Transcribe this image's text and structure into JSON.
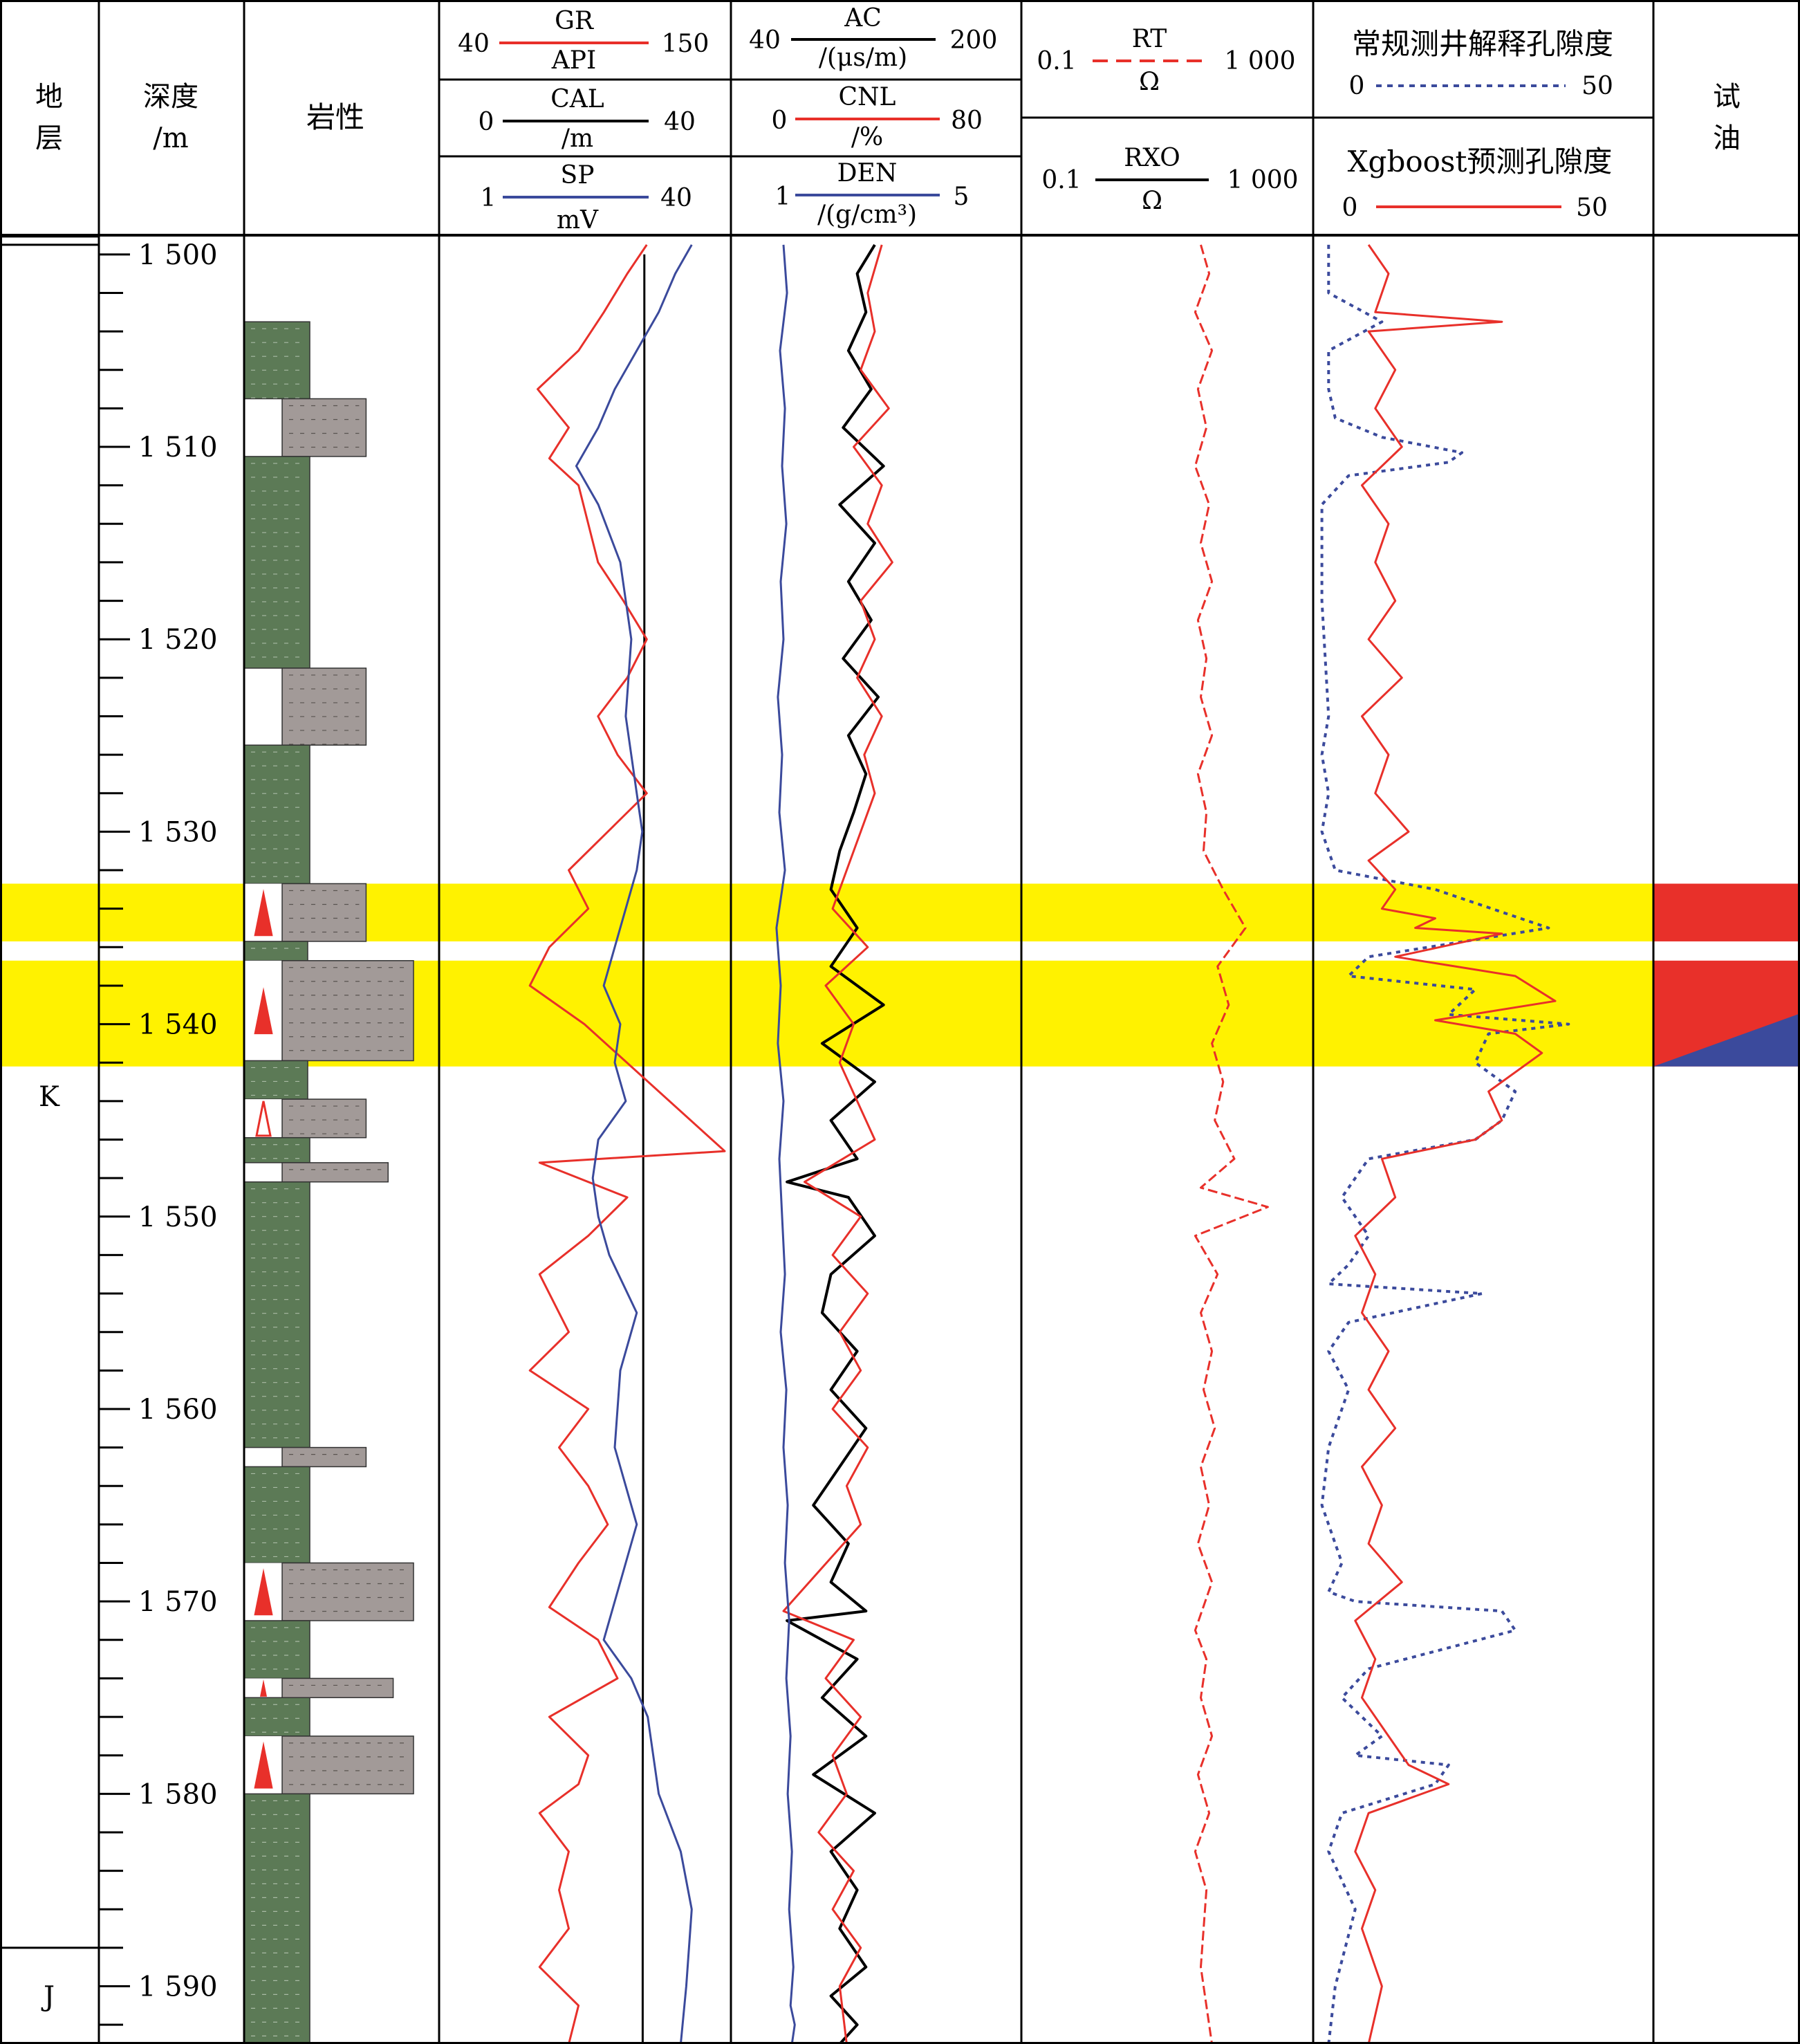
{
  "headers": {
    "stratum": [
      "地",
      "层"
    ],
    "depth": [
      "深度",
      "/m"
    ],
    "lithology": "岩性",
    "test": [
      "试",
      "油"
    ],
    "porosity_conv_title": "常规测井解释孔隙度",
    "porosity_xgb_title": "Xgboost预测孔隙度"
  },
  "tracks": [
    {
      "name": "GR",
      "unit": "API",
      "min": "40",
      "max": "150",
      "color": "#e8302a"
    },
    {
      "name": "CAL",
      "unit": "/m",
      "min": "0",
      "max": "40",
      "color": "#000000"
    },
    {
      "name": "SP",
      "unit": "mV",
      "min": "1",
      "max": "40",
      "color": "#3b4a9c"
    },
    {
      "name": "AC",
      "unit": "/(μs/m)",
      "min": "40",
      "max": "200",
      "color": "#000000"
    },
    {
      "name": "CNL",
      "unit": "/%",
      "min": "0",
      "max": "80",
      "color": "#e8302a"
    },
    {
      "name": "DEN",
      "unit": "/(g/cm³)",
      "min": "1",
      "max": "5",
      "color": "#3b4a9c"
    },
    {
      "name": "RT",
      "unit": "Ω",
      "min": "0.1",
      "max": "1 000",
      "color": "#e8302a"
    },
    {
      "name": "RXO",
      "unit": "Ω",
      "min": "0.1",
      "max": "1 000",
      "color": "#000000"
    },
    {
      "name": "常规测井解释孔隙度",
      "unit": "",
      "min": "0",
      "max": "50",
      "color": "#3b4a9c"
    },
    {
      "name": "Xgboost预测孔隙度",
      "unit": "",
      "min": "0",
      "max": "50",
      "color": "#e8302a"
    }
  ],
  "colors": {
    "shale": "#5c7a56",
    "sand": "#a29a98",
    "highlight": "#fff200",
    "oil": "#e8302a",
    "water": "#3b4a9c",
    "red_curve": "#e8302a",
    "blue_curve": "#3b4a9c",
    "black_curve": "#000000"
  },
  "chart_data": {
    "type": "well_log",
    "depth_range": [
      1499,
      1593
    ],
    "depth_ticks": [
      1500,
      1510,
      1520,
      1530,
      1540,
      1550,
      1560,
      1570,
      1580,
      1590
    ],
    "depth_tick_labels": [
      "1 500",
      "1 510",
      "1 520",
      "1 530",
      "1 540",
      "1 550",
      "1 560",
      "1 570",
      "1 580",
      "1 590"
    ],
    "strata": [
      {
        "label": "K",
        "top": 1499.5,
        "bottom": 1588.0
      },
      {
        "label": "J",
        "top": 1588.0,
        "bottom": 1593.0
      }
    ],
    "highlight_zones": [
      [
        1532.7,
        1535.7
      ],
      [
        1536.7,
        1542.2
      ]
    ],
    "oil_test": [
      {
        "top": 1532.7,
        "bottom": 1535.7,
        "result": "oil"
      },
      {
        "top": 1536.7,
        "bottom": 1542.2,
        "result": "oil-water"
      }
    ],
    "lithology": [
      {
        "top": 1503.5,
        "bottom": 1507.5,
        "type": "shale"
      },
      {
        "top": 1507.5,
        "bottom": 1510.5,
        "type": "silty_sand",
        "extent": 0.72
      },
      {
        "top": 1510.5,
        "bottom": 1521.5,
        "type": "shale"
      },
      {
        "top": 1521.5,
        "bottom": 1525.5,
        "type": "silty_sand",
        "extent": 0.72
      },
      {
        "top": 1525.5,
        "bottom": 1532.7,
        "type": "shale"
      },
      {
        "top": 1532.7,
        "bottom": 1535.7,
        "type": "silty_sand",
        "extent": 0.72,
        "oil_marker": "filled"
      },
      {
        "top": 1535.7,
        "bottom": 1536.7,
        "type": "shale",
        "extent": 0.6
      },
      {
        "top": 1536.7,
        "bottom": 1541.9,
        "type": "coarse_sand",
        "extent": 1.0,
        "oil_marker": "filled"
      },
      {
        "top": 1541.9,
        "bottom": 1543.9,
        "type": "shale",
        "extent": 0.6
      },
      {
        "top": 1543.9,
        "bottom": 1545.9,
        "type": "silty_sand",
        "extent": 0.72,
        "oil_marker": "hollow"
      },
      {
        "top": 1545.9,
        "bottom": 1547.2,
        "type": "shale"
      },
      {
        "top": 1547.2,
        "bottom": 1548.2,
        "type": "silty_sand",
        "extent": 0.85
      },
      {
        "top": 1548.2,
        "bottom": 1562.0,
        "type": "shale"
      },
      {
        "top": 1562.0,
        "bottom": 1563.0,
        "type": "silty_sand",
        "extent": 0.72
      },
      {
        "top": 1563.0,
        "bottom": 1568.0,
        "type": "shale"
      },
      {
        "top": 1568.0,
        "bottom": 1571.0,
        "type": "coarse_sand",
        "extent": 1.0,
        "oil_marker": "filled"
      },
      {
        "top": 1571.0,
        "bottom": 1574.0,
        "type": "shale"
      },
      {
        "top": 1574.0,
        "bottom": 1575.0,
        "type": "coarse_sand",
        "extent": 0.88,
        "oil_marker": "small"
      },
      {
        "top": 1575.0,
        "bottom": 1577.0,
        "type": "shale"
      },
      {
        "top": 1577.0,
        "bottom": 1580.0,
        "type": "coarse_sand",
        "extent": 1.0,
        "oil_marker": "filled"
      },
      {
        "top": 1580.0,
        "bottom": 1593.0,
        "type": "shale_dotted"
      }
    ],
    "series": [
      {
        "name": "CAL",
        "track": 1,
        "x": [
          25,
          25,
          24.8,
          24.8,
          24.7,
          24.7
        ],
        "y": [
          1500,
          1520,
          1540,
          1560,
          1580,
          1593
        ]
      },
      {
        "name": "GR",
        "track": 1,
        "x": [
          110,
          100,
          88,
          75,
          54,
          70,
          60,
          75,
          80,
          85,
          98,
          110,
          100,
          85,
          95,
          110,
          90,
          70,
          80,
          60,
          50,
          78,
          150,
          55,
          100,
          80,
          55,
          70,
          50,
          80,
          65,
          80,
          90,
          75,
          60,
          85,
          95,
          60,
          80,
          75,
          55,
          70,
          65,
          70,
          55,
          75,
          70,
          80,
          70,
          65,
          70,
          75,
          72,
          70,
          75,
          73,
          75
        ],
        "y": [
          1499.5,
          1501,
          1503,
          1505,
          1507,
          1509,
          1510.6,
          1512,
          1514,
          1516,
          1518,
          1520,
          1522,
          1524,
          1526,
          1528,
          1530,
          1532,
          1534,
          1536,
          1538,
          1540,
          1546.6,
          1547.2,
          1549,
          1551,
          1553,
          1556,
          1558,
          1560,
          1562,
          1564,
          1566,
          1568,
          1570.3,
          1572,
          1574,
          1576,
          1578,
          1579.5,
          1581,
          1583,
          1585,
          1587,
          1589,
          1591,
          1593,
          1593,
          1593,
          1593,
          1593,
          1593,
          1593,
          1593,
          1593,
          1593,
          1593
        ]
      },
      {
        "name": "SP",
        "track": 1,
        "x": [
          34,
          31,
          28,
          24,
          20,
          17,
          13,
          17,
          21,
          23,
          22,
          24,
          25,
          24,
          22,
          20,
          18,
          21,
          20,
          22,
          17,
          16,
          17,
          19,
          24,
          21,
          20,
          24,
          22,
          20,
          18,
          23,
          26,
          28,
          32,
          34,
          33,
          32
        ],
        "y": [
          1499.5,
          1501,
          1503,
          1505,
          1507,
          1509,
          1511,
          1513,
          1516,
          1520,
          1524,
          1528,
          1530,
          1532,
          1534,
          1536,
          1538,
          1540,
          1542,
          1544,
          1546,
          1548,
          1550,
          1552,
          1555,
          1558,
          1562,
          1566,
          1568,
          1570,
          1572,
          1574,
          1576,
          1580,
          1583,
          1586,
          1590,
          1593
        ]
      },
      {
        "name": "AC",
        "track": 2,
        "x": [
          120,
          110,
          115,
          105,
          118,
          102,
          125,
          100,
          120,
          105,
          118,
          102,
          122,
          105,
          115,
          108,
          100,
          95,
          110,
          95,
          125,
          90,
          120,
          95,
          110,
          70,
          105,
          120,
          95,
          90,
          110,
          95,
          115,
          100,
          85,
          105,
          95,
          115,
          70,
          110,
          90,
          115,
          85,
          120,
          95,
          110,
          100,
          115,
          95,
          110,
          100
        ],
        "y": [
          1499.5,
          1501,
          1503,
          1505,
          1507,
          1509,
          1511,
          1513,
          1515,
          1517,
          1519,
          1521,
          1523,
          1525,
          1527,
          1529,
          1531,
          1533,
          1535,
          1537,
          1539,
          1541,
          1543,
          1545,
          1547,
          1548.2,
          1549,
          1551,
          1553,
          1555,
          1557,
          1559,
          1561,
          1563,
          1565,
          1567,
          1569,
          1570.5,
          1571,
          1573,
          1575,
          1577,
          1579,
          1581,
          1583,
          1585,
          1587,
          1589,
          1590.5,
          1592,
          1593
        ]
      },
      {
        "name": "CNL",
        "track": 2,
        "x": [
          42,
          38,
          40,
          36,
          44,
          34,
          42,
          38,
          45,
          36,
          40,
          35,
          42,
          37,
          40,
          36,
          32,
          28,
          38,
          26,
          34,
          30,
          35,
          40,
          20,
          36,
          28,
          38,
          30,
          36,
          28,
          38,
          32,
          36,
          14,
          34,
          26,
          36,
          28,
          32,
          24,
          34,
          28,
          36,
          30,
          32
        ],
        "y": [
          1499.5,
          1502,
          1504,
          1506,
          1508,
          1510,
          1512,
          1514,
          1516,
          1518,
          1520,
          1522,
          1524,
          1526,
          1528,
          1530,
          1532,
          1534,
          1536,
          1538,
          1540,
          1542,
          1544,
          1546,
          1548.2,
          1550,
          1552,
          1554,
          1556,
          1558,
          1560,
          1562,
          1564,
          1566,
          1570.5,
          1572,
          1574,
          1576,
          1578,
          1580,
          1582,
          1584,
          1586,
          1588,
          1590,
          1593
        ]
      },
      {
        "name": "DEN",
        "track": 2,
        "x": [
          1.7,
          1.75,
          1.65,
          1.72,
          1.68,
          1.74,
          1.66,
          1.7,
          1.62,
          1.68,
          1.64,
          1.72,
          1.6,
          1.66,
          1.62,
          1.7,
          1.64,
          1.68,
          1.72,
          1.66,
          1.74,
          1.7,
          1.76,
          1.72,
          1.78,
          1.74,
          1.8,
          1.76,
          1.82,
          1.78,
          1.84,
          1.8,
          1.86,
          1.82
        ],
        "y": [
          1499.5,
          1502,
          1505,
          1508,
          1511,
          1514,
          1517,
          1520,
          1523,
          1526,
          1529,
          1532,
          1535,
          1538,
          1541,
          1544,
          1547,
          1550,
          1553,
          1556,
          1559,
          1562,
          1565,
          1568,
          1571,
          1574,
          1577,
          1580,
          1583,
          1586,
          1589,
          1591,
          1592,
          1593
        ]
      },
      {
        "name": "RT",
        "track": 3,
        "x": [
          0.62,
          0.65,
          0.6,
          0.66,
          0.61,
          0.64,
          0.6,
          0.65,
          0.62,
          0.66,
          0.61,
          0.64,
          0.62,
          0.66,
          0.61,
          0.64,
          0.63,
          0.7,
          0.78,
          0.68,
          0.72,
          0.66,
          0.7,
          0.67,
          0.74,
          0.62,
          0.86,
          0.6,
          0.68,
          0.62,
          0.66,
          0.63,
          0.67,
          0.62,
          0.65,
          0.61,
          0.66,
          0.6,
          0.64,
          0.62,
          0.66,
          0.61,
          0.65,
          0.6,
          0.64,
          0.62,
          0.66
        ],
        "y": [
          1499.5,
          1501,
          1503,
          1505,
          1507,
          1509,
          1511,
          1513,
          1515,
          1517,
          1519,
          1521,
          1523,
          1525,
          1527,
          1529,
          1531,
          1533,
          1535,
          1537,
          1539,
          1541,
          1543,
          1545,
          1547,
          1548.5,
          1549.5,
          1551,
          1553,
          1555,
          1557,
          1559,
          1561,
          1563,
          1565,
          1567,
          1569,
          1571.5,
          1573,
          1575,
          1577,
          1579,
          1581,
          1583,
          1585,
          1589,
          1593
        ]
      },
      {
        "name": "常规测井解释孔隙度",
        "track": 4,
        "x": [
          2,
          2,
          10,
          2,
          2,
          3,
          10,
          22,
          20,
          5,
          1,
          1,
          2,
          1,
          2,
          1,
          3,
          18,
          35,
          8,
          5,
          24,
          20,
          38,
          26,
          24,
          30,
          28,
          24,
          8,
          4,
          8,
          5,
          2,
          25,
          5,
          2,
          5,
          2,
          1,
          4,
          2,
          6,
          28,
          30,
          8,
          4,
          10,
          6,
          20,
          18,
          4,
          2,
          6,
          3,
          2
        ],
        "y": [
          1499.5,
          1502,
          1503.5,
          1505,
          1507,
          1508.5,
          1509.5,
          1510.3,
          1510.8,
          1511.5,
          1513,
          1518,
          1524,
          1526,
          1528,
          1530,
          1532,
          1533,
          1535,
          1536.5,
          1537.5,
          1538.2,
          1539.5,
          1540,
          1540.5,
          1542,
          1543.5,
          1545,
          1546,
          1547,
          1549,
          1551,
          1552.5,
          1553.5,
          1554,
          1555.5,
          1557,
          1559,
          1562,
          1565,
          1568,
          1569.5,
          1570,
          1570.5,
          1571.5,
          1573.5,
          1575,
          1577,
          1578,
          1578.5,
          1579.5,
          1581,
          1583,
          1586,
          1590,
          1593
        ]
      },
      {
        "name": "Xgboost预测孔隙度",
        "track": 4,
        "x": [
          8,
          11,
          9,
          28,
          8,
          12,
          9,
          13,
          7,
          11,
          9,
          12,
          8,
          13,
          7,
          11,
          9,
          14,
          8,
          12,
          10,
          18,
          15,
          28,
          12,
          30,
          36,
          18,
          30,
          34,
          26,
          28,
          24,
          10,
          12,
          6,
          9,
          7,
          11,
          8,
          12,
          7,
          10,
          8,
          13,
          6,
          9,
          7,
          11,
          14,
          20,
          8,
          6,
          9,
          7,
          10,
          8
        ],
        "y": [
          1499.5,
          1501,
          1503,
          1503.5,
          1504,
          1506,
          1508,
          1510,
          1512,
          1514,
          1516,
          1518,
          1520,
          1522,
          1524,
          1526,
          1528,
          1530,
          1531.5,
          1533,
          1534,
          1534.5,
          1535,
          1535.3,
          1536.5,
          1537.5,
          1538.8,
          1539.8,
          1540.5,
          1541.5,
          1543.5,
          1545,
          1546,
          1547,
          1549,
          1551,
          1553,
          1555,
          1557,
          1559,
          1561,
          1563,
          1565,
          1567,
          1569,
          1571,
          1573,
          1575,
          1577,
          1578.5,
          1579.5,
          1581,
          1583,
          1585,
          1587,
          1590,
          1593
        ]
      }
    ]
  }
}
